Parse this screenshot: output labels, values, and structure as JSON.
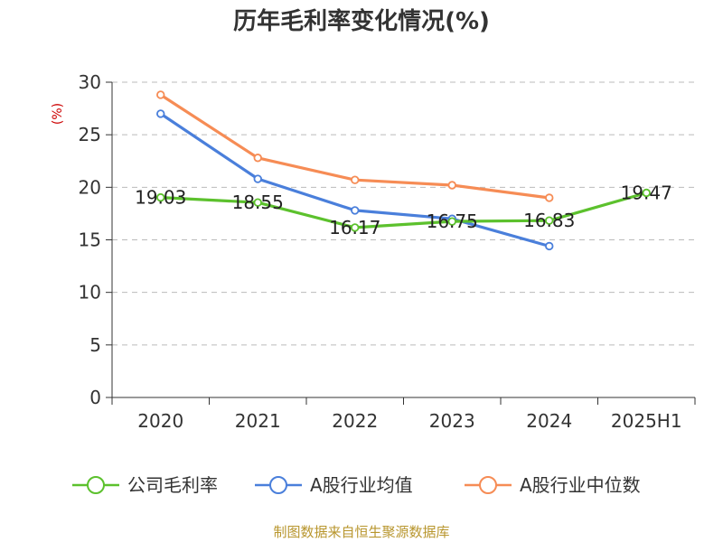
{
  "chart_data": {
    "type": "line",
    "title": "历年毛利率变化情况(%)",
    "unit_label": "(%)",
    "categories": [
      "2020",
      "2021",
      "2022",
      "2023",
      "2024",
      "2025H1"
    ],
    "ylim": [
      0,
      30
    ],
    "yticks": [
      0,
      5,
      10,
      15,
      20,
      25,
      30
    ],
    "grid": true,
    "legend_position": "bottom",
    "series": [
      {
        "name": "公司毛利率",
        "color": "#5cc12d",
        "values": [
          19.03,
          18.55,
          16.17,
          16.75,
          16.83,
          19.47
        ],
        "labels": [
          "19.03",
          "18.55",
          "16.17",
          "16.75",
          "16.83",
          "19.47"
        ],
        "show_labels": true
      },
      {
        "name": "A股行业均值",
        "color": "#4a7fdb",
        "values": [
          27.0,
          20.8,
          17.8,
          17.0,
          14.4,
          null
        ],
        "show_labels": false
      },
      {
        "name": "A股行业中位数",
        "color": "#f68c55",
        "values": [
          28.8,
          22.8,
          20.7,
          20.2,
          19.0,
          null
        ],
        "show_labels": false
      }
    ]
  },
  "source_text": "制图数据来自恒生聚源数据库"
}
